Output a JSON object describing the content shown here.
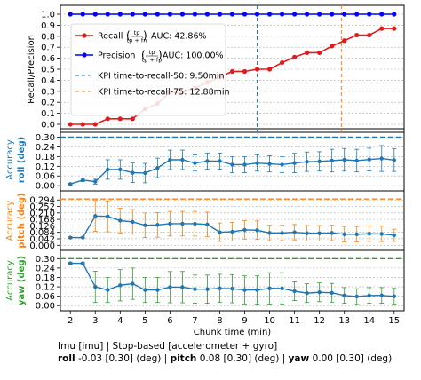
{
  "chart_data": [
    {
      "type": "line",
      "ylabel": "Recall/Precision",
      "ylim": [
        0,
        1.0
      ],
      "yticks": [
        "0.0",
        "0.1",
        "0.2",
        "0.3",
        "0.4",
        "0.5",
        "0.6",
        "0.7",
        "0.8",
        "0.9",
        "1.0"
      ],
      "grid": true,
      "legend_position": "upper-left",
      "x": [
        2,
        2.5,
        3,
        3.5,
        4,
        4.5,
        5,
        5.5,
        6,
        6.5,
        7,
        7.5,
        8,
        8.5,
        9,
        9.5,
        10,
        10.5,
        11,
        11.5,
        12,
        12.5,
        13,
        13.5,
        14,
        14.5,
        15
      ],
      "series": [
        {
          "name": "Recall",
          "auc_label": "AUC: 42.86%",
          "color": "#e31a1c",
          "marker": "circle",
          "values": [
            0.0,
            0.0,
            0.0,
            0.05,
            0.05,
            0.05,
            0.14,
            0.19,
            0.29,
            0.29,
            0.33,
            0.38,
            0.43,
            0.48,
            0.48,
            0.5,
            0.5,
            0.56,
            0.61,
            0.65,
            0.65,
            0.71,
            0.76,
            0.81,
            0.81,
            0.87,
            0.87
          ]
        },
        {
          "name": "Precision",
          "auc_label": "AUC: 100.00%",
          "color": "#0000ff",
          "marker": "circle",
          "values": [
            1,
            1,
            1,
            1,
            1,
            1,
            1,
            1,
            1,
            1,
            1,
            1,
            1,
            1,
            1,
            1,
            1,
            1,
            1,
            1,
            1,
            1,
            1,
            1,
            1,
            1,
            1
          ]
        }
      ],
      "kpi_lines": [
        {
          "label": "KPI time-to-recall-50: 9.50min",
          "x": 9.5,
          "color": "#1f77b4"
        },
        {
          "label": "KPI time-to-recall-75: 12.88min",
          "x": 12.88,
          "color": "#ff7f0e"
        }
      ]
    },
    {
      "type": "line",
      "ylabel_line1": "Accuracy",
      "ylabel_line2": "roll (deg)",
      "color": "#1f77b4",
      "ylim": [
        -0.01,
        0.33
      ],
      "yticks": [
        "0.00",
        "0.06",
        "0.12",
        "0.18",
        "0.24",
        "0.30"
      ],
      "threshold": 0.3,
      "x": [
        2,
        2.5,
        3,
        3.5,
        4,
        4.5,
        5,
        5.5,
        6,
        6.5,
        7,
        7.5,
        8,
        8.5,
        9,
        9.5,
        10,
        10.5,
        11,
        11.5,
        12,
        12.5,
        13,
        13.5,
        14,
        14.5,
        15
      ],
      "values": [
        0.01,
        0.035,
        0.025,
        0.1,
        0.1,
        0.08,
        0.078,
        0.11,
        0.16,
        0.16,
        0.14,
        0.152,
        0.152,
        0.13,
        0.13,
        0.14,
        0.135,
        0.13,
        0.14,
        0.148,
        0.15,
        0.155,
        0.16,
        0.155,
        0.162,
        0.168,
        0.158
      ],
      "errors": [
        0.005,
        0.01,
        0.015,
        0.06,
        0.06,
        0.06,
        0.06,
        0.06,
        0.06,
        0.06,
        0.05,
        0.05,
        0.05,
        0.05,
        0.05,
        0.05,
        0.05,
        0.05,
        0.06,
        0.06,
        0.06,
        0.07,
        0.07,
        0.07,
        0.07,
        0.08,
        0.07
      ]
    },
    {
      "type": "line",
      "ylabel_line1": "Accuracy",
      "ylabel_line2": "pitch (deg)",
      "color": "#ff7f0e",
      "ylim": [
        -0.01,
        0.33
      ],
      "yticks": [
        "0.000",
        "0.042",
        "0.084",
        "0.126",
        "0.168",
        "0.210",
        "0.252",
        "0.294"
      ],
      "threshold": 0.3,
      "x": [
        2,
        2.5,
        3,
        3.5,
        4,
        4.5,
        5,
        5.5,
        6,
        6.5,
        7,
        7.5,
        8,
        8.5,
        9,
        9.5,
        10,
        10.5,
        11,
        11.5,
        12,
        12.5,
        13,
        13.5,
        14,
        14.5,
        15
      ],
      "values": [
        0.05,
        0.05,
        0.19,
        0.188,
        0.16,
        0.152,
        0.13,
        0.132,
        0.14,
        0.14,
        0.14,
        0.135,
        0.085,
        0.088,
        0.1,
        0.098,
        0.08,
        0.08,
        0.085,
        0.078,
        0.078,
        0.08,
        0.072,
        0.072,
        0.075,
        0.074,
        0.065
      ],
      "errors": [
        0.005,
        0.005,
        0.1,
        0.1,
        0.08,
        0.08,
        0.08,
        0.08,
        0.08,
        0.08,
        0.08,
        0.08,
        0.06,
        0.06,
        0.06,
        0.06,
        0.05,
        0.05,
        0.05,
        0.05,
        0.05,
        0.05,
        0.05,
        0.05,
        0.05,
        0.05,
        0.04
      ]
    },
    {
      "type": "line",
      "ylabel_line1": "Accuracy",
      "ylabel_line2": "yaw (deg)",
      "color": "#2ca02c",
      "ylim": [
        -0.01,
        0.33
      ],
      "yticks": [
        "0.00",
        "0.06",
        "0.12",
        "0.18",
        "0.24",
        "0.30"
      ],
      "threshold": 0.3,
      "xlabel": "Chunk time (min)",
      "xticks": [
        "2",
        "3",
        "4",
        "5",
        "6",
        "7",
        "8",
        "9",
        "10",
        "11",
        "12",
        "13",
        "14",
        "15"
      ],
      "x": [
        2,
        2.5,
        3,
        3.5,
        4,
        4.5,
        5,
        5.5,
        6,
        6.5,
        7,
        7.5,
        8,
        8.5,
        9,
        9.5,
        10,
        10.5,
        11,
        11.5,
        12,
        12.5,
        13,
        13.5,
        14,
        14.5,
        15
      ],
      "values": [
        0.27,
        0.27,
        0.12,
        0.1,
        0.13,
        0.14,
        0.1,
        0.1,
        0.118,
        0.118,
        0.105,
        0.105,
        0.11,
        0.108,
        0.1,
        0.1,
        0.11,
        0.11,
        0.092,
        0.08,
        0.085,
        0.082,
        0.065,
        0.058,
        0.065,
        0.065,
        0.06
      ],
      "errors": [
        0.005,
        0.005,
        0.1,
        0.08,
        0.1,
        0.1,
        0.08,
        0.08,
        0.1,
        0.1,
        0.09,
        0.09,
        0.09,
        0.09,
        0.09,
        0.09,
        0.1,
        0.1,
        0.06,
        0.06,
        0.06,
        0.06,
        0.05,
        0.05,
        0.05,
        0.05,
        0.05
      ]
    }
  ],
  "caption": {
    "line1": "Imu [imu] | Stop-based [accelerometer + gyro]",
    "roll_key": "roll",
    "roll_val": "-0.03 [0.30] (deg) |",
    "pitch_key": "pitch",
    "pitch_val": "0.08 [0.30] (deg) |",
    "yaw_key": "yaw",
    "yaw_val": "0.00 [0.30] (deg)"
  }
}
